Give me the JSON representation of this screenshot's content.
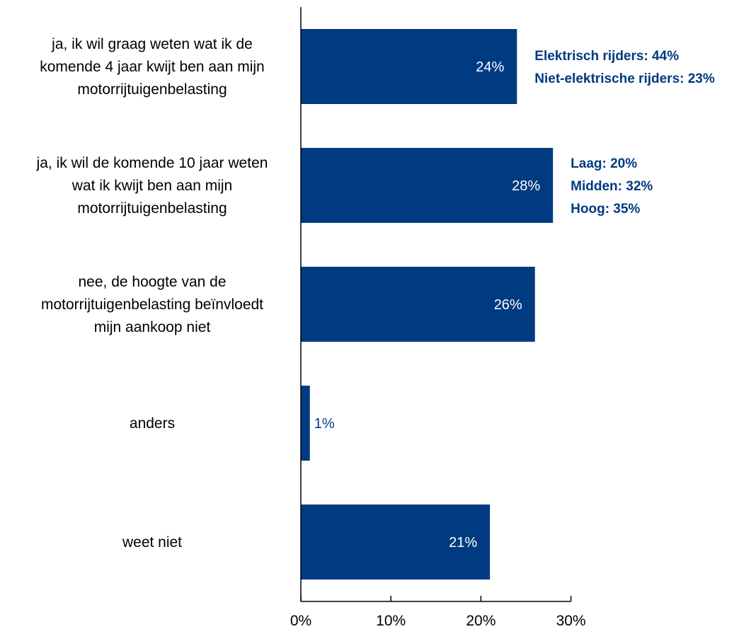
{
  "chart_data": {
    "type": "bar",
    "orientation": "horizontal",
    "title": "",
    "xlabel": "",
    "ylabel": "",
    "xlim": [
      0,
      30
    ],
    "x_ticks": [
      "0%",
      "10%",
      "20%",
      "30%"
    ],
    "grid": false,
    "bar_color": "#003a80",
    "categories": [
      [
        "ja, ik wil graag weten wat ik de",
        "komende 4 jaar kwijt ben aan mijn",
        "motorrijtuigenbelasting"
      ],
      [
        "ja, ik wil de komende 10 jaar weten",
        "wat ik kwijt ben aan mijn",
        "motorrijtuigenbelasting"
      ],
      [
        "nee, de hoogte van de",
        "motorrijtuigenbelasting beïnvloedt",
        "mijn aankoop niet"
      ],
      [
        "anders"
      ],
      [
        "weet niet"
      ]
    ],
    "values": [
      24,
      28,
      26,
      1,
      21
    ],
    "value_labels": [
      "24%",
      "28%",
      "26%",
      "1%",
      "21%"
    ],
    "annotations": [
      {
        "category_index": 0,
        "lines": [
          "Elektrisch rijders: 44%",
          "Niet-elektrische rijders: 23%"
        ]
      },
      {
        "category_index": 1,
        "lines": [
          "Laag: 20%",
          "Midden: 32%",
          "Hoog: 35%"
        ]
      }
    ]
  }
}
